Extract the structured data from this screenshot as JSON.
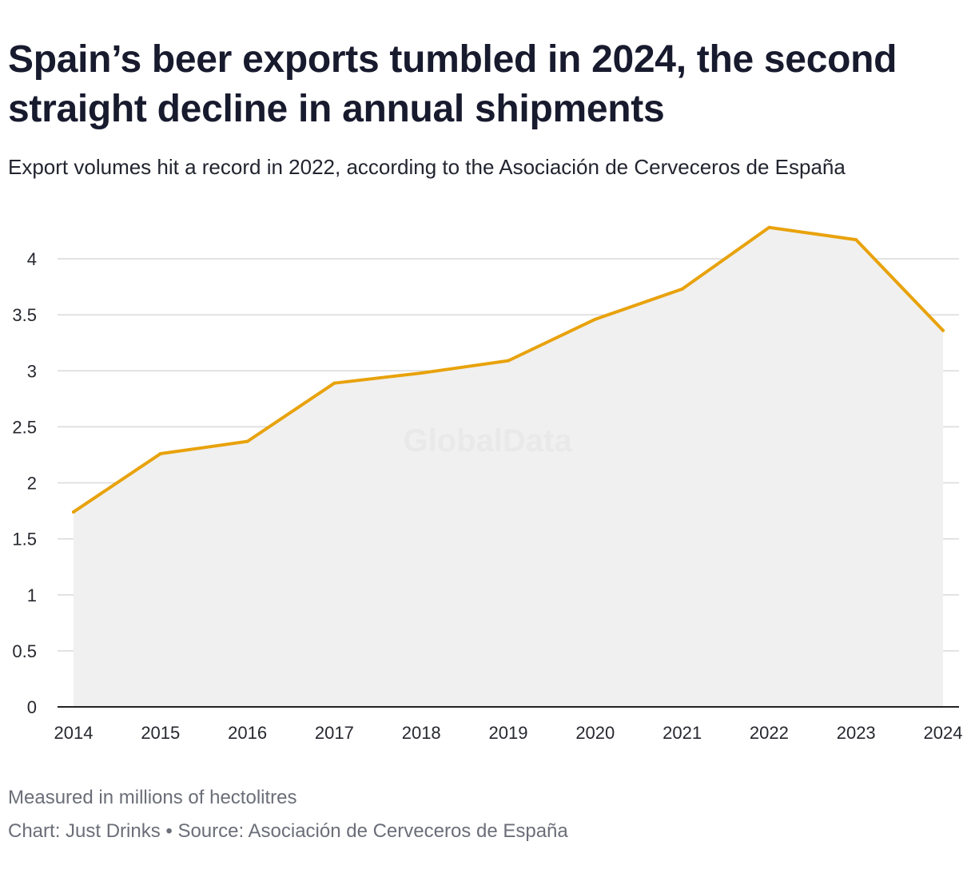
{
  "header": {
    "title": "Spain’s beer exports tumbled in 2024, the second straight decline in annual shipments",
    "subtitle": "Export volumes hit a record in 2022, according to the Asociación de Cerveceros de España"
  },
  "footer": {
    "note": "Measured in millions of hectolitres",
    "credit": "Chart: Just Drinks • Source: Asociación de Cerveceros de España"
  },
  "watermark": "GlobalData",
  "colors": {
    "line": "#e8a20c",
    "area": "#f0f0f0",
    "grid": "#d9d9d9",
    "axis": "#222222"
  },
  "chart_data": {
    "type": "area",
    "title": "Spain’s beer exports tumbled in 2024, the second straight decline in annual shipments",
    "xlabel": "",
    "ylabel": "Measured in millions of hectolitres",
    "categories": [
      "2014",
      "2015",
      "2016",
      "2017",
      "2018",
      "2019",
      "2020",
      "2021",
      "2022",
      "2023",
      "2024"
    ],
    "series": [
      {
        "name": "Beer exports",
        "values": [
          1.74,
          2.26,
          2.37,
          2.89,
          2.98,
          3.09,
          3.46,
          3.73,
          4.28,
          4.17,
          3.36
        ]
      }
    ],
    "yticks": [
      "0",
      "0.5",
      "1",
      "1.5",
      "2",
      "2.5",
      "3",
      "3.5",
      "4"
    ],
    "ylim": [
      0,
      4.3
    ],
    "grid": true,
    "legend": "none"
  }
}
